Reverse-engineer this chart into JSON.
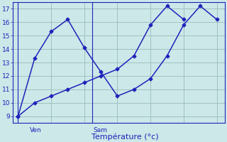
{
  "line1_x": [
    0,
    1,
    2,
    3,
    4,
    5,
    6,
    7,
    8,
    9,
    10
  ],
  "line1_y": [
    9.0,
    10.0,
    10.5,
    11.0,
    11.5,
    12.0,
    12.5,
    13.5,
    15.8,
    17.2,
    16.2
  ],
  "line2_x": [
    0,
    1,
    2,
    3,
    4,
    5,
    6,
    7,
    8,
    9,
    10,
    11,
    12
  ],
  "line2_y": [
    9.0,
    13.3,
    15.3,
    16.2,
    14.1,
    12.3,
    10.5,
    11.0,
    11.8,
    13.5,
    15.8,
    17.2,
    16.2
  ],
  "line_color": "#2222bb",
  "bg_color": "#cce8e8",
  "grid_color": "#99bbbb",
  "axis_color": "#2222bb",
  "xlabel": "Température (°c)",
  "ylim": [
    8.5,
    17.5
  ],
  "xlim": [
    -0.3,
    12.5
  ],
  "yticks": [
    9,
    10,
    11,
    12,
    13,
    14,
    15,
    16,
    17
  ],
  "ven_x": 0,
  "sam_x": 4.5,
  "ven_label": "Ven",
  "sam_label": "Sam",
  "tick_fontsize": 6.5,
  "label_fontsize": 8,
  "line_width": 1.1,
  "marker": "D",
  "marker_size": 2.5
}
